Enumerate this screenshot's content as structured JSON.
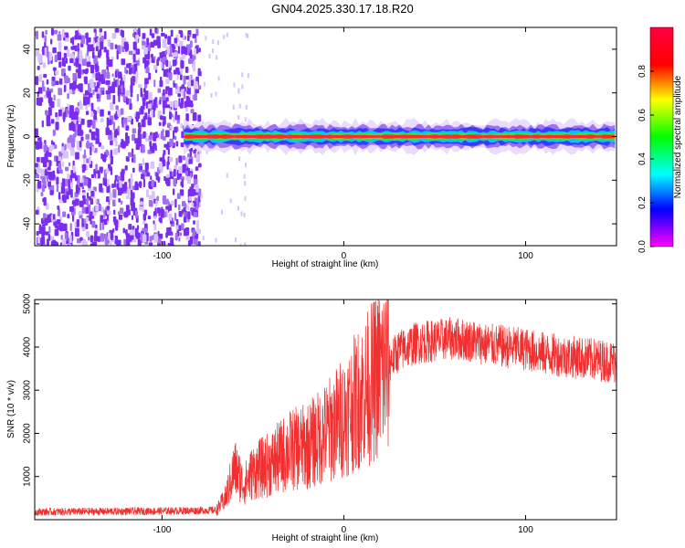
{
  "title": "GN04.2025.330.17.18.R20",
  "colors": {
    "snr_line": "#f03030",
    "spectrogram_noise": "#7a2cf0",
    "spectrogram_peak": "#ff2a2a"
  },
  "chart_data": [
    {
      "type": "heatmap",
      "xlabel": "Height of straight line (km)",
      "ylabel": "Frequency (Hz)",
      "xlim": [
        -170,
        150
      ],
      "ylim": [
        -50,
        50
      ],
      "xticks": [
        -100,
        0,
        100
      ],
      "yticks": [
        -40,
        -20,
        0,
        20,
        40
      ],
      "colorbar": {
        "label": "Normalized spectral amplitude",
        "range": [
          0,
          1
        ],
        "ticks": [
          "0.0",
          "0.2",
          "0.4",
          "0.6",
          "0.8"
        ],
        "colormap": "hsv-rainbow"
      },
      "noise_region_x": [
        -170,
        -80
      ],
      "signal_center_frequency": 0,
      "signal_start_x": -88,
      "grid": false
    },
    {
      "type": "line",
      "xlabel": "Height of straight line (km)",
      "ylabel": "SNR (10 * v/v)",
      "xlim": [
        -170,
        150
      ],
      "ylim": [
        0,
        5100
      ],
      "xticks": [
        -100,
        0,
        100
      ],
      "yticks": [
        1000,
        2000,
        3000,
        4000,
        5000
      ],
      "grid": false,
      "series": [
        {
          "x": [
            -170,
            -100,
            -70,
            -65,
            -60,
            -55,
            -50,
            -40,
            -30,
            -20,
            -10,
            0,
            10,
            20,
            30,
            40,
            50,
            60,
            70,
            80,
            90,
            100,
            110,
            120,
            130,
            140,
            150
          ],
          "values": [
            180,
            200,
            220,
            500,
            1200,
            800,
            1100,
            1300,
            1600,
            1700,
            2000,
            2400,
            2900,
            3400,
            3900,
            4100,
            4150,
            4200,
            4150,
            4050,
            4000,
            3950,
            3850,
            3800,
            3750,
            3700,
            3650
          ]
        }
      ]
    }
  ]
}
